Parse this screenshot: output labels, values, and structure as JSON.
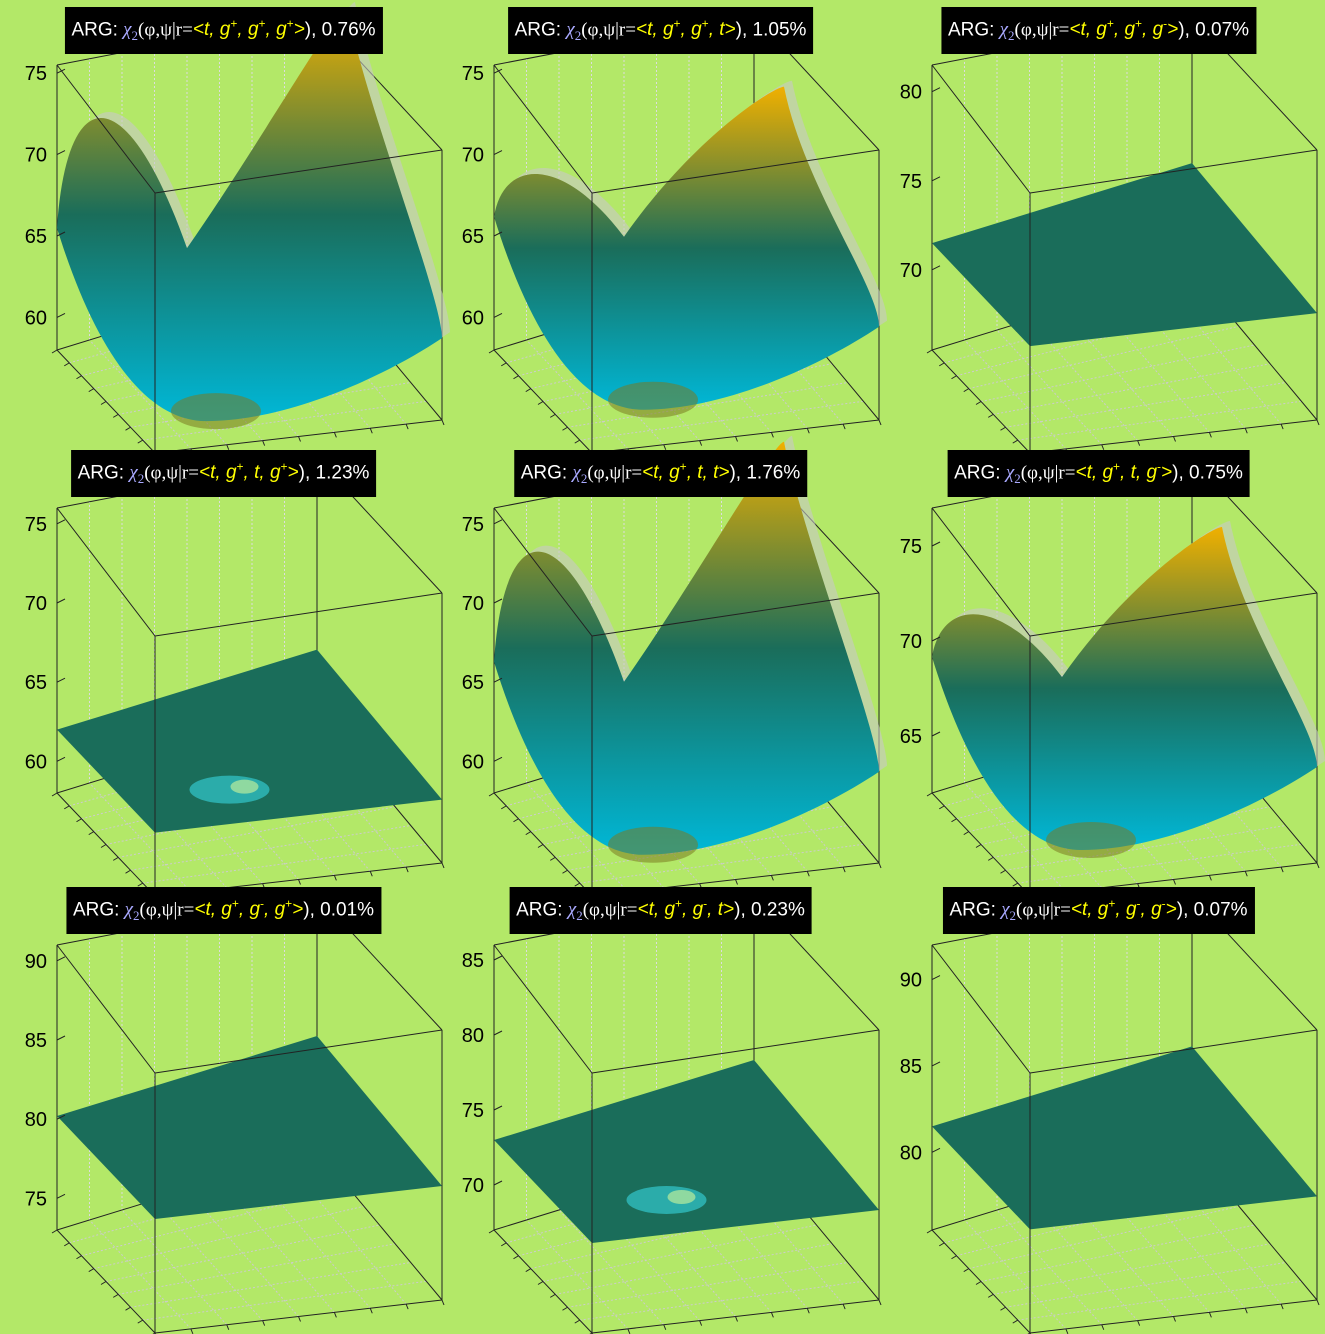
{
  "chart_data": [
    {
      "type": "surface",
      "title": {
        "prefix": "ARG: ",
        "func": "χ",
        "sub": "2",
        "args": "(φ,ψ|r=",
        "r": [
          [
            "t",
            ""
          ],
          [
            "g",
            "+"
          ],
          [
            "g",
            "+"
          ],
          [
            "g",
            "+"
          ]
        ],
        "suffix": "), 0.76%"
      },
      "zticks": [
        "60",
        "65",
        "70",
        "75"
      ],
      "zlim": [
        58,
        75.5
      ],
      "surface": {
        "base": 61.8,
        "style": "valley"
      },
      "colors": {
        "surface": "#1a6d5a",
        "low": "#00b8d8",
        "high": "#f0b000"
      }
    },
    {
      "type": "surface",
      "title": {
        "prefix": "ARG: ",
        "func": "χ",
        "sub": "2",
        "args": "(φ,ψ|r=",
        "r": [
          [
            "t",
            ""
          ],
          [
            "g",
            "+"
          ],
          [
            "g",
            "+"
          ],
          [
            "t",
            ""
          ]
        ],
        "suffix": "), 1.05%"
      },
      "zticks": [
        "60",
        "65",
        "70",
        "75"
      ],
      "zlim": [
        58,
        75.5
      ],
      "surface": {
        "base": 62.5,
        "style": "valley-soft"
      },
      "colors": {
        "surface": "#1a6d5a",
        "low": "#00b8d8",
        "high": "#f0b000"
      }
    },
    {
      "type": "surface",
      "title": {
        "prefix": "ARG: ",
        "func": "χ",
        "sub": "2",
        "args": "(φ,ψ|r=",
        "r": [
          [
            "t",
            ""
          ],
          [
            "g",
            "+"
          ],
          [
            "g",
            "+"
          ],
          [
            "g",
            "-"
          ]
        ],
        "suffix": "), 0.07%"
      },
      "zticks": [
        "70",
        "75",
        "80"
      ],
      "zlim": [
        65.5,
        81.5
      ],
      "surface": {
        "base": 71.5,
        "style": "flat"
      },
      "colors": {
        "surface": "#1a6d5a",
        "low": "#00b8d8",
        "high": "#f0b000"
      }
    },
    {
      "type": "surface",
      "title": {
        "prefix": "ARG: ",
        "func": "χ",
        "sub": "2",
        "args": "(φ,ψ|r=",
        "r": [
          [
            "t",
            ""
          ],
          [
            "g",
            "+"
          ],
          [
            "t",
            ""
          ],
          [
            "g",
            "+"
          ]
        ],
        "suffix": "), 1.23%"
      },
      "zticks": [
        "60",
        "65",
        "70",
        "75"
      ],
      "zlim": [
        58,
        76
      ],
      "surface": {
        "base": 62.0,
        "style": "flat-bump"
      },
      "colors": {
        "surface": "#1a6d5a",
        "low": "#00b8d8",
        "high": "#f0b000"
      }
    },
    {
      "type": "surface",
      "title": {
        "prefix": "ARG: ",
        "func": "χ",
        "sub": "2",
        "args": "(φ,ψ|r=",
        "r": [
          [
            "t",
            ""
          ],
          [
            "g",
            "+"
          ],
          [
            "t",
            ""
          ],
          [
            "t",
            ""
          ]
        ],
        "suffix": "), 1.76%"
      },
      "zticks": [
        "60",
        "65",
        "70",
        "75"
      ],
      "zlim": [
        58,
        76
      ],
      "surface": {
        "base": 62.5,
        "style": "valley"
      },
      "colors": {
        "surface": "#1a6d5a",
        "low": "#00b8d8",
        "high": "#f0b000"
      }
    },
    {
      "type": "surface",
      "title": {
        "prefix": "ARG: ",
        "func": "χ",
        "sub": "2",
        "args": "(φ,ψ|r=",
        "r": [
          [
            "t",
            ""
          ],
          [
            "g",
            "+"
          ],
          [
            "t",
            ""
          ],
          [
            "g",
            "-"
          ]
        ],
        "suffix": "), 0.75%"
      },
      "zticks": [
        "65",
        "70",
        "75"
      ],
      "zlim": [
        62,
        77
      ],
      "surface": {
        "base": 66.0,
        "style": "valley-soft"
      },
      "colors": {
        "surface": "#1a6d5a",
        "low": "#00b8d8",
        "high": "#f0b000"
      }
    },
    {
      "type": "surface",
      "title": {
        "prefix": "ARG: ",
        "func": "χ",
        "sub": "2",
        "args": "(φ,ψ|r=",
        "r": [
          [
            "t",
            ""
          ],
          [
            "g",
            "+"
          ],
          [
            "g",
            "-"
          ],
          [
            "g",
            "+"
          ]
        ],
        "suffix": "), 0.01%"
      },
      "zticks": [
        "75",
        "80",
        "85",
        "90"
      ],
      "zlim": [
        73,
        91
      ],
      "surface": {
        "base": 80.2,
        "style": "flat"
      },
      "colors": {
        "surface": "#1a6d5a",
        "low": "#00b8d8",
        "high": "#f0b000"
      }
    },
    {
      "type": "surface",
      "title": {
        "prefix": "ARG: ",
        "func": "χ",
        "sub": "2",
        "args": "(φ,ψ|r=",
        "r": [
          [
            "t",
            ""
          ],
          [
            "g",
            "+"
          ],
          [
            "g",
            "-"
          ],
          [
            "t",
            ""
          ]
        ],
        "suffix": "), 0.23%"
      },
      "zticks": [
        "70",
        "75",
        "80",
        "85"
      ],
      "zlim": [
        67,
        86
      ],
      "surface": {
        "base": 73.0,
        "style": "flat-bump"
      },
      "colors": {
        "surface": "#1a6d5a",
        "low": "#00b8d8",
        "high": "#f0b000"
      }
    },
    {
      "type": "surface",
      "title": {
        "prefix": "ARG: ",
        "func": "χ",
        "sub": "2",
        "args": "(φ,ψ|r=",
        "r": [
          [
            "t",
            ""
          ],
          [
            "g",
            "+"
          ],
          [
            "g",
            "-"
          ],
          [
            "g",
            "-"
          ]
        ],
        "suffix": "), 0.07%"
      },
      "zticks": [
        "80",
        "85",
        "90"
      ],
      "zlim": [
        75.5,
        92
      ],
      "surface": {
        "base": 81.5,
        "style": "flat"
      },
      "colors": {
        "surface": "#1a6d5a",
        "low": "#00b8d8",
        "high": "#f0b000"
      }
    }
  ]
}
